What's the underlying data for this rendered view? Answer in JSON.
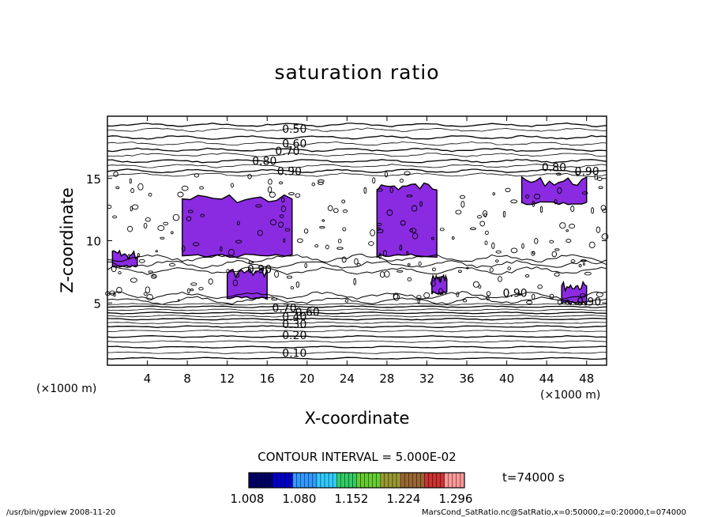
{
  "chart_data": {
    "type": "contour",
    "title": "saturation ratio",
    "xlabel": "X-coordinate",
    "ylabel": "Z-coordinate",
    "x_unit": "(×1000 m)",
    "z_unit": "(×1000 m)",
    "xlim": [
      0,
      50
    ],
    "ylim": [
      0,
      20
    ],
    "x_ticks": [
      4,
      8,
      12,
      16,
      20,
      24,
      28,
      32,
      36,
      40,
      44,
      48
    ],
    "y_ticks": [
      5,
      10,
      15
    ],
    "contour_interval_text": "CONTOUR INTERVAL = 5.000E-02",
    "time_text": "t=74000 s",
    "contour_labels": [
      {
        "text": "0.50",
        "x": 17.5,
        "z": 19.0
      },
      {
        "text": "0.60",
        "x": 17.5,
        "z": 17.8
      },
      {
        "text": "0.70",
        "x": 16.8,
        "z": 17.2
      },
      {
        "text": "0.80",
        "x": 14.5,
        "z": 16.4
      },
      {
        "text": "0.90",
        "x": 17.0,
        "z": 15.6
      },
      {
        "text": "0.80",
        "x": 43.5,
        "z": 15.9
      },
      {
        "text": "0.90",
        "x": 46.8,
        "z": 15.6
      },
      {
        "text": "0.90",
        "x": 14.0,
        "z": 7.7
      },
      {
        "text": "0.90",
        "x": 39.6,
        "z": 5.8
      },
      {
        "text": "0.90",
        "x": 47.0,
        "z": 5.1
      },
      {
        "text": "0.70",
        "x": 16.5,
        "z": 4.6
      },
      {
        "text": "0.60",
        "x": 18.8,
        "z": 4.3
      },
      {
        "text": "0.40",
        "x": 17.5,
        "z": 3.9
      },
      {
        "text": "0.30",
        "x": 17.5,
        "z": 3.3
      },
      {
        "text": "0.20",
        "x": 17.5,
        "z": 2.4
      },
      {
        "text": "0.10",
        "x": 17.5,
        "z": 1.0
      }
    ],
    "supersaturated_regions": [
      {
        "x": [
          7.5,
          18.5
        ],
        "z": [
          8.8,
          13.5
        ]
      },
      {
        "x": [
          12,
          16
        ],
        "z": [
          5.4,
          7.6
        ]
      },
      {
        "x": [
          27,
          33
        ],
        "z": [
          8.8,
          14.5
        ]
      },
      {
        "x": [
          41.5,
          48
        ],
        "z": [
          13.0,
          14.9
        ]
      },
      {
        "x": [
          32.5,
          34
        ],
        "z": [
          5.8,
          7.0
        ]
      },
      {
        "x": [
          0.5,
          3.0
        ],
        "z": [
          8.0,
          9.0
        ]
      },
      {
        "x": [
          45.5,
          48
        ],
        "z": [
          5.0,
          6.5
        ]
      }
    ],
    "colorbar": {
      "ticks": [
        "1.008",
        "1.080",
        "1.152",
        "1.224",
        "1.296"
      ],
      "colors": [
        "#000066",
        "#0000cc",
        "#3399ff",
        "#33ccff",
        "#33cc66",
        "#66cc33",
        "#999933",
        "#996633",
        "#cc3333",
        "#ff9999"
      ]
    },
    "colors": {
      "fill": "#8a2be2",
      "contour": "#000000"
    },
    "grid": false
  },
  "footer": {
    "left": "/usr/bin/gpview 2008-11-20",
    "right": "MarsCond_SatRatio.nc@SatRatio,x=0:50000,z=0:20000,t=074000"
  }
}
